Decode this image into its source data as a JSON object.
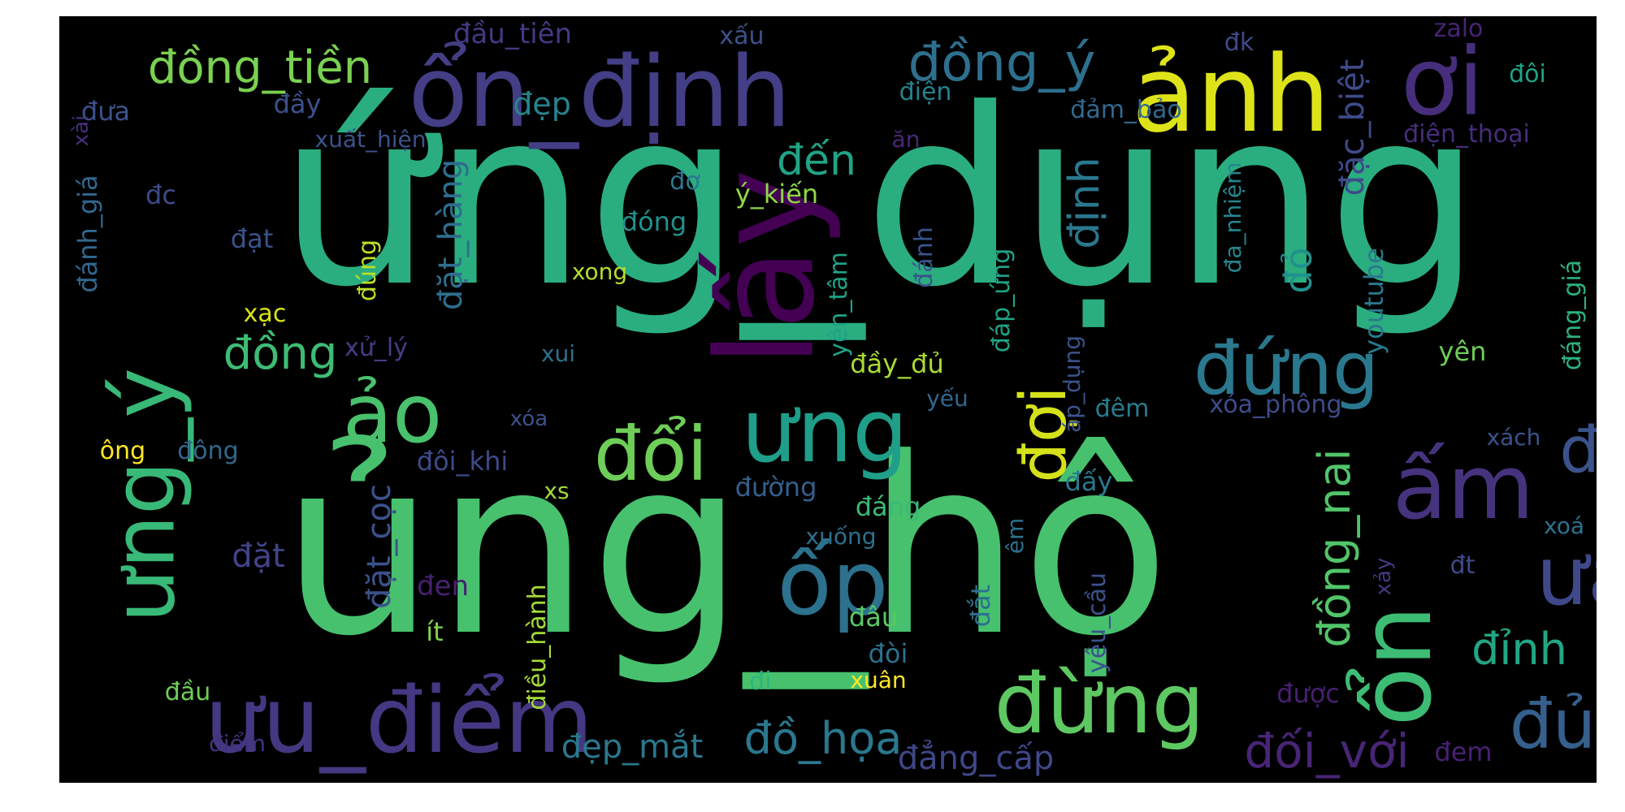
{
  "palette": [
    "#440154",
    "#472d7b",
    "#3b528b",
    "#2c728e",
    "#21918c",
    "#28ae80",
    "#5ec962",
    "#addc30",
    "#fde725"
  ],
  "words": [
    {
      "t": "ứng_dụng",
      "c": "#2aae80"
    },
    {
      "t": "ủng_hộ",
      "c": "#47c16e"
    },
    {
      "t": "lấy",
      "c": "#440154"
    },
    {
      "t": "ổn_định",
      "c": "#433e85"
    },
    {
      "t": "ảnh",
      "c": "#dde318"
    },
    {
      "t": "ơi",
      "c": "#472e7c"
    },
    {
      "t": "ưu_điểm",
      "c": "#453781"
    },
    {
      "t": "ưng",
      "c": "#1f9e89"
    },
    {
      "t": "ổn",
      "c": "#3dbc74"
    },
    {
      "t": "ốp",
      "c": "#2c718e"
    },
    {
      "t": "ấm",
      "c": "#46337e"
    },
    {
      "t": "đừng",
      "c": "#5ec962"
    },
    {
      "t": "ưng_ý",
      "c": "#38b977"
    },
    {
      "t": "ảo",
      "c": "#4ac16d"
    },
    {
      "t": "đứng",
      "c": "#2a788e"
    },
    {
      "t": "ưa",
      "c": "#3f4889"
    },
    {
      "t": "đợi",
      "c": "#d5e21a"
    },
    {
      "t": "đổi",
      "c": "#6ece58"
    },
    {
      "t": "độ",
      "c": "#3b528b"
    },
    {
      "t": "đồng_tiền",
      "c": "#7ad151"
    },
    {
      "t": "đồng_ý",
      "c": "#2d708e"
    },
    {
      "t": "đủ",
      "c": "#355f8d"
    },
    {
      "t": "đối_với",
      "c": "#482576"
    },
    {
      "t": "đồ_họa",
      "c": "#2a788e"
    },
    {
      "t": "đồng_nai",
      "c": "#51c56a"
    },
    {
      "t": "đỉnh",
      "c": "#22a785"
    },
    {
      "t": "đồng",
      "c": "#3dbc74"
    },
    {
      "t": "đến",
      "c": "#20a486"
    },
    {
      "t": "định",
      "c": "#2a788e"
    },
    {
      "t": "đẹp_mắt",
      "c": "#2a788e"
    },
    {
      "t": "đặt_cọc",
      "c": "#3b528b"
    },
    {
      "t": "đặt_hàng",
      "c": "#2e6e8e"
    },
    {
      "t": "đặc_biệt",
      "c": "#3e4a89"
    },
    {
      "t": "đẳng_cấp",
      "c": "#3f4788"
    },
    {
      "t": "đẹp",
      "c": "#25858e"
    },
    {
      "t": "đỏ",
      "c": "#21918c"
    },
    {
      "t": "đặt",
      "c": "#414487"
    },
    {
      "t": "đầu_tiên",
      "c": "#443983"
    },
    {
      "t": "đầy",
      "c": "#3b528b"
    },
    {
      "t": "đưa",
      "c": "#3b528b"
    },
    {
      "t": "đóng",
      "c": "#21918c"
    },
    {
      "t": "đôi",
      "c": "#20a386"
    },
    {
      "t": "đôi_khi",
      "c": "#3e4a89"
    },
    {
      "t": "ý_kiến",
      "c": "#8fd744"
    },
    {
      "t": "đơ",
      "c": "#2a788e"
    },
    {
      "t": "đạt",
      "c": "#3b528b"
    },
    {
      "t": "đc",
      "c": "#3e4a89"
    },
    {
      "t": "xấu",
      "c": "#3b528b"
    },
    {
      "t": "đk",
      "c": "#3e4a89"
    },
    {
      "t": "zalo",
      "c": "#482475"
    },
    {
      "t": "điện_thoại",
      "c": "#472d7b"
    },
    {
      "t": "điện",
      "c": "#26828e"
    },
    {
      "t": "đảm_bảo",
      "c": "#31688e"
    },
    {
      "t": "ăn",
      "c": "#482878"
    },
    {
      "t": "xuất_hiện",
      "c": "#3b528b"
    },
    {
      "t": "xài",
      "c": "#472d7b"
    },
    {
      "t": "đánh_giá",
      "c": "#31688e"
    },
    {
      "t": "xạc",
      "c": "#d8e219"
    },
    {
      "t": "xong",
      "c": "#b5de2b"
    },
    {
      "t": "đúng",
      "c": "#bddf26"
    },
    {
      "t": "xử_lý",
      "c": "#433e85"
    },
    {
      "t": "xui",
      "c": "#2c718e"
    },
    {
      "t": "yên_tâm",
      "c": "#1fa287"
    },
    {
      "t": "đánh",
      "c": "#39558c"
    },
    {
      "t": "đáp_ứng",
      "c": "#20a386"
    },
    {
      "t": "đa_nhiệm",
      "c": "#25858e"
    },
    {
      "t": "youtube",
      "c": "#2a788e"
    },
    {
      "t": "đáng_giá",
      "c": "#2db27d"
    },
    {
      "t": "yên",
      "c": "#6ece58"
    },
    {
      "t": "đầy_đủ",
      "c": "#a8db34"
    },
    {
      "t": "áp_dụng",
      "c": "#3b528b"
    },
    {
      "t": "yếu",
      "c": "#31688e"
    },
    {
      "t": "đêm",
      "c": "#287d8e"
    },
    {
      "t": "xóa_phông",
      "c": "#3e4c8a"
    },
    {
      "t": "xách",
      "c": "#3b528b"
    },
    {
      "t": "xóa",
      "c": "#3b528b"
    },
    {
      "t": "ông",
      "c": "#fde725"
    },
    {
      "t": "đông",
      "c": "#31688e"
    },
    {
      "t": "đường",
      "c": "#355f8d"
    },
    {
      "t": "đáng",
      "c": "#3aba76"
    },
    {
      "t": "đấy",
      "c": "#29798e"
    },
    {
      "t": "xs",
      "c": "#a2da37"
    },
    {
      "t": "xuống",
      "c": "#2d708e"
    },
    {
      "t": "êm",
      "c": "#2c718e"
    },
    {
      "t": "xoá",
      "c": "#2c718e"
    },
    {
      "t": "đen",
      "c": "#482071"
    },
    {
      "t": "đâu",
      "c": "#5ac864"
    },
    {
      "t": "điều_hành",
      "c": "#a5db36"
    },
    {
      "t": "đắt",
      "c": "#2c718e"
    },
    {
      "t": "yêu_cầu",
      "c": "#3b528b"
    },
    {
      "t": "xảy",
      "c": "#453781"
    },
    {
      "t": "đt",
      "c": "#3e4a89"
    },
    {
      "t": "ít",
      "c": "#7fd34e"
    },
    {
      "t": "đòi",
      "c": "#2c718e"
    },
    {
      "t": "đi",
      "c": "#2fb47c"
    },
    {
      "t": "xuân",
      "c": "#fde725"
    },
    {
      "t": "được",
      "c": "#481f70"
    },
    {
      "t": "đầu",
      "c": "#6ece58"
    },
    {
      "t": "điểm",
      "c": "#46327e"
    },
    {
      "t": "đem",
      "c": "#482173"
    }
  ]
}
